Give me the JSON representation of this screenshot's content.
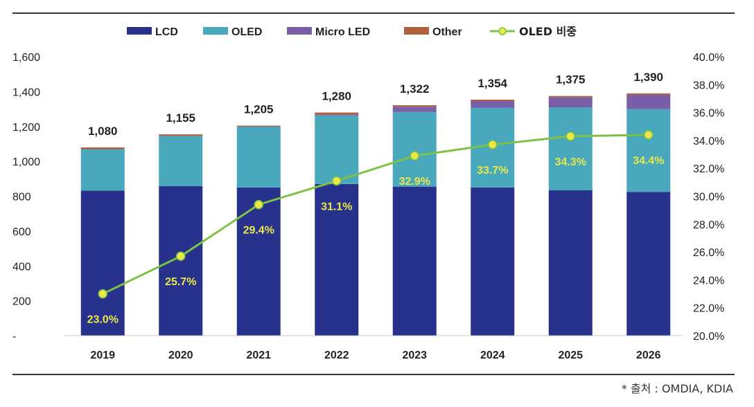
{
  "source_note": "* 출처 : OMDIA, KDIA",
  "chart_data": {
    "type": "bar",
    "stacked": true,
    "categories": [
      "2019",
      "2020",
      "2021",
      "2022",
      "2023",
      "2024",
      "2025",
      "2026"
    ],
    "series": [
      {
        "name": "LCD",
        "color": "#28318c",
        "values": [
          832,
          858,
          850,
          870,
          855,
          850,
          835,
          825
        ]
      },
      {
        "name": "OLED",
        "color": "#4aa8bd",
        "values": [
          238,
          288,
          349,
          394,
          428,
          458,
          475,
          475
        ]
      },
      {
        "name": "Micro LED",
        "color": "#7b5ea8",
        "values": [
          0,
          0,
          0,
          4,
          30,
          38,
          57,
          82
        ]
      },
      {
        "name": "Other",
        "color": "#b0613d",
        "values": [
          10,
          9,
          6,
          12,
          9,
          8,
          8,
          8
        ]
      }
    ],
    "totals": [
      "1,080",
      "1,155",
      "1,205",
      "1,280",
      "1,322",
      "1,354",
      "1,375",
      "1,390"
    ],
    "total_values": [
      1080,
      1155,
      1205,
      1280,
      1322,
      1354,
      1375,
      1390
    ],
    "line_series": {
      "name": "OLED 비중",
      "color": "#7cc246",
      "marker_color": "#e8e84a",
      "label_color": "#e8e84a",
      "values": [
        23.0,
        25.7,
        29.4,
        31.1,
        32.9,
        33.7,
        34.3,
        34.4
      ],
      "labels": [
        "23.0%",
        "25.7%",
        "29.4%",
        "31.1%",
        "32.9%",
        "33.7%",
        "34.3%",
        "34.4%"
      ]
    },
    "y_left": {
      "min": 0,
      "max": 1600,
      "ticks": [
        "-",
        "200",
        "400",
        "600",
        "800",
        "1,000",
        "1,200",
        "1,400",
        "1,600"
      ]
    },
    "y_right": {
      "min": 20,
      "max": 40,
      "ticks": [
        "20.0%",
        "22.0%",
        "24.0%",
        "26.0%",
        "28.0%",
        "30.0%",
        "32.0%",
        "34.0%",
        "36.0%",
        "38.0%",
        "40.0%"
      ]
    },
    "legend_position": "top",
    "grid": false
  }
}
